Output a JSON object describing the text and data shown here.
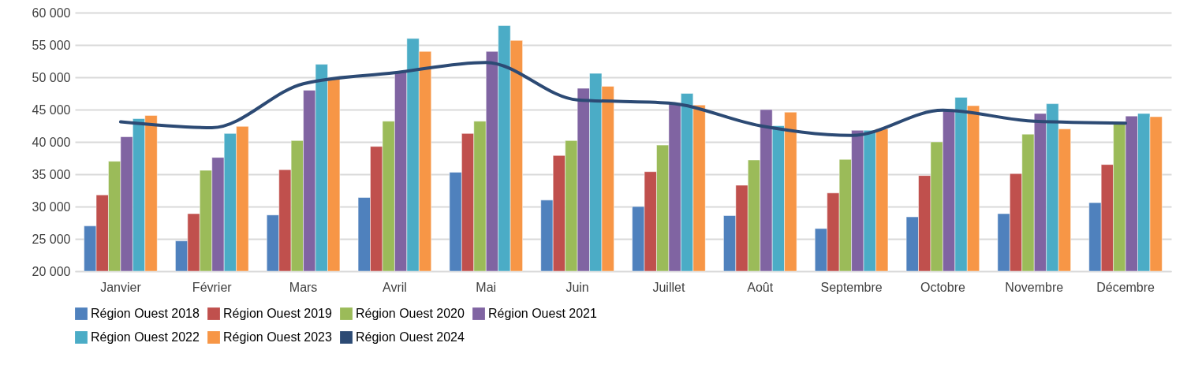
{
  "chart_data": {
    "type": "bar",
    "categories": [
      "Janvier",
      "Février",
      "Mars",
      "Avril",
      "Mai",
      "Juin",
      "Juillet",
      "Août",
      "Septembre",
      "Octobre",
      "Novembre",
      "Décembre"
    ],
    "series": [
      {
        "name": "Région Ouest 2018",
        "color": "#4f81bd",
        "values": [
          27000,
          24700,
          28700,
          31400,
          35300,
          31000,
          30000,
          28600,
          26600,
          28400,
          28900,
          30600
        ]
      },
      {
        "name": "Région Ouest 2019",
        "color": "#c0504d",
        "values": [
          31800,
          28900,
          35700,
          39300,
          41300,
          37900,
          35400,
          33300,
          32100,
          34800,
          35100,
          36500
        ]
      },
      {
        "name": "Région Ouest 2020",
        "color": "#9bbb59",
        "values": [
          37000,
          35600,
          40200,
          43200,
          43200,
          40200,
          39500,
          37200,
          37300,
          40000,
          41200,
          42800
        ]
      },
      {
        "name": "Région Ouest 2021",
        "color": "#8064a2",
        "values": [
          40800,
          37600,
          48000,
          50800,
          54000,
          48300,
          46000,
          45000,
          41800,
          44800,
          44400,
          44000
        ]
      },
      {
        "name": "Région Ouest 2022",
        "color": "#4bacc6",
        "values": [
          43600,
          41300,
          52000,
          56000,
          58000,
          50600,
          47500,
          42500,
          41800,
          46900,
          45900,
          44400
        ]
      },
      {
        "name": "Région Ouest 2023",
        "color": "#f79646",
        "values": [
          44100,
          42400,
          49800,
          54000,
          55700,
          48600,
          45700,
          44600,
          42000,
          45600,
          42000,
          43900
        ]
      },
      {
        "name": "Région Ouest 2024",
        "color": "#2c4a74",
        "type": "line",
        "values": [
          43100,
          42200,
          49000,
          50700,
          52300,
          46500,
          46000,
          42500,
          41000,
          44900,
          43200,
          42900
        ]
      }
    ],
    "ylim": [
      20000,
      60000
    ],
    "yticks": [
      {
        "value": 20000,
        "label": "20 000"
      },
      {
        "value": 25000,
        "label": "25 000"
      },
      {
        "value": 30000,
        "label": "30 000"
      },
      {
        "value": 35000,
        "label": "35 000"
      },
      {
        "value": 40000,
        "label": "40 000"
      },
      {
        "value": 45000,
        "label": "45 000"
      },
      {
        "value": 50000,
        "label": "50 000"
      },
      {
        "value": 55000,
        "label": "55 000"
      },
      {
        "value": 60000,
        "label": "60 000"
      }
    ],
    "grid": "y",
    "legend": "bottom",
    "marker": "none",
    "line_style": "solid"
  }
}
